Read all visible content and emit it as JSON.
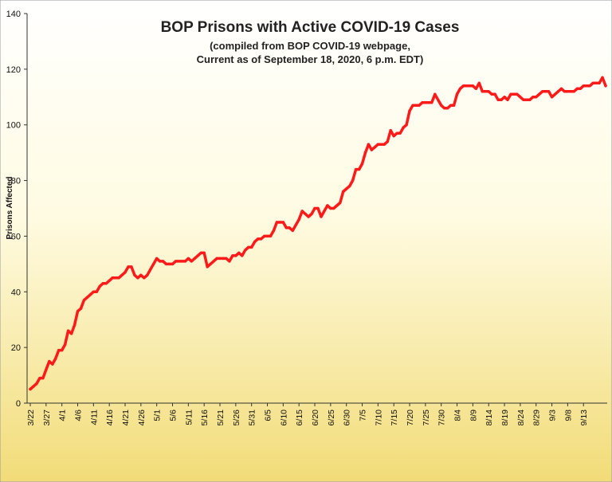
{
  "chart_data": {
    "type": "line",
    "title": "BOP Prisons with Active COVID-19 Cases",
    "subtitle_lines": [
      "(compiled from BOP COVID-19 webpage,",
      "Current as of September 18, 2020, 6 p.m. EDT)"
    ],
    "ylabel": "Prisons Affected",
    "xlabel": "",
    "ylim": [
      0,
      140
    ],
    "yticks": [
      0,
      20,
      40,
      60,
      80,
      100,
      120,
      140
    ],
    "grid": false,
    "legend": "none",
    "line_color": "#ff1a1a",
    "background_top": "#ffffff",
    "background_bottom": "#f2dc78",
    "x_start_label": "3/22",
    "x_tick_labels": [
      "3/22",
      "3/27",
      "4/1",
      "4/6",
      "4/11",
      "4/16",
      "4/21",
      "4/26",
      "5/1",
      "5/6",
      "5/11",
      "5/16",
      "5/21",
      "5/26",
      "5/31",
      "6/5",
      "6/10",
      "6/15",
      "6/20",
      "6/25",
      "6/30",
      "7/5",
      "7/10",
      "7/15",
      "7/20",
      "7/25",
      "7/30",
      "8/4",
      "8/9",
      "8/14",
      "8/19",
      "8/24",
      "8/29",
      "9/3",
      "9/8",
      "9/13"
    ],
    "x_tick_every_days": 5,
    "series": [
      {
        "name": "",
        "values": [
          5,
          6,
          7,
          9,
          9,
          12,
          15,
          14,
          16,
          19,
          19,
          21,
          26,
          25,
          28,
          33,
          34,
          37,
          38,
          39,
          40,
          40,
          42,
          43,
          43,
          44,
          45,
          45,
          45,
          46,
          47,
          49,
          49,
          46,
          45,
          46,
          45,
          46,
          48,
          50,
          52,
          51,
          51,
          50,
          50,
          50,
          51,
          51,
          51,
          51,
          52,
          51,
          52,
          53,
          54,
          54,
          49,
          50,
          51,
          52,
          52,
          52,
          52,
          51,
          53,
          53,
          54,
          53,
          55,
          56,
          56,
          58,
          59,
          59,
          60,
          60,
          60,
          62,
          65,
          65,
          65,
          63,
          63,
          62,
          64,
          66,
          69,
          68,
          67,
          68,
          70,
          70,
          67,
          69,
          71,
          70,
          70,
          71,
          72,
          76,
          77,
          78,
          80,
          84,
          84,
          86,
          90,
          93,
          91,
          92,
          93,
          93,
          93,
          94,
          98,
          96,
          97,
          97,
          99,
          100,
          105,
          107,
          107,
          107,
          108,
          108,
          108,
          108,
          111,
          109,
          107,
          106,
          106,
          107,
          107,
          111,
          113,
          114,
          114,
          114,
          114,
          113,
          115,
          112,
          112,
          112,
          111,
          111,
          109,
          109,
          110,
          109,
          111,
          111,
          111,
          110,
          109,
          109,
          109,
          110,
          110,
          111,
          112,
          112,
          112,
          110,
          111,
          112,
          113,
          112,
          112,
          112,
          112,
          113,
          113,
          114,
          114,
          114,
          115,
          115,
          115,
          117,
          114
        ]
      }
    ]
  }
}
